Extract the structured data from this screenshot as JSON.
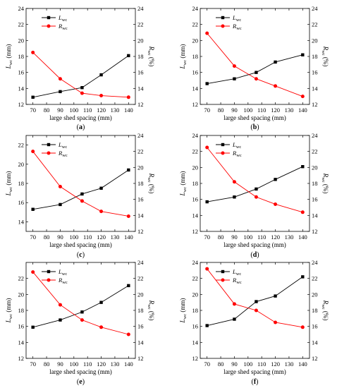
{
  "figure": {
    "panels_meta": {
      "xlabel": "large shed spacing (mm)",
      "ylabel_left": {
        "main": "L",
        "sub": "wc",
        "unit": " (mm)"
      },
      "ylabel_right": {
        "main": "R",
        "sub": "wc",
        "unit": " (%)"
      },
      "legend": [
        {
          "main": "L",
          "sub": "wc",
          "marker": "square",
          "color": "#000000"
        },
        {
          "main": "R",
          "sub": "wc",
          "marker": "circle",
          "color": "#ff0000"
        }
      ]
    }
  },
  "chart_data": [
    {
      "panel": "(a)",
      "type": "line",
      "x": [
        70,
        90,
        106,
        120,
        140
      ],
      "xlim": [
        65,
        145
      ],
      "xticks": [
        70,
        80,
        90,
        100,
        110,
        120,
        130,
        140
      ],
      "ylim_left": [
        12,
        24
      ],
      "yticks_left": [
        12,
        14,
        16,
        18,
        20,
        22,
        24
      ],
      "ylim_right": [
        12,
        24
      ],
      "yticks_right": [
        12,
        14,
        16,
        18,
        20,
        22,
        24
      ],
      "legend_position": "top-left",
      "series": [
        {
          "name": "Lwc",
          "axis": "left",
          "color": "#000000",
          "marker": "square",
          "values": [
            12.9,
            13.6,
            14.1,
            15.7,
            18.1
          ]
        },
        {
          "name": "Rwc",
          "axis": "right",
          "color": "#ff0000",
          "marker": "circle",
          "values": [
            18.5,
            15.2,
            13.4,
            13.1,
            12.9
          ]
        }
      ]
    },
    {
      "panel": "(b)",
      "type": "line",
      "x": [
        70,
        90,
        106,
        120,
        140
      ],
      "xlim": [
        65,
        145
      ],
      "xticks": [
        70,
        80,
        90,
        100,
        110,
        120,
        130,
        140
      ],
      "ylim_left": [
        12,
        24
      ],
      "yticks_left": [
        12,
        14,
        16,
        18,
        20,
        22,
        24
      ],
      "ylim_right": [
        12,
        24
      ],
      "yticks_right": [
        12,
        14,
        16,
        18,
        20,
        22,
        24
      ],
      "legend_position": "top-left",
      "series": [
        {
          "name": "Lwc",
          "axis": "left",
          "color": "#000000",
          "marker": "square",
          "values": [
            14.6,
            15.2,
            16.0,
            17.3,
            18.2
          ]
        },
        {
          "name": "Rwc",
          "axis": "right",
          "color": "#ff0000",
          "marker": "circle",
          "values": [
            20.9,
            16.8,
            15.2,
            14.3,
            13.0
          ]
        }
      ]
    },
    {
      "panel": "(c)",
      "type": "line",
      "x": [
        70,
        90,
        106,
        120,
        140
      ],
      "xlim": [
        65,
        145
      ],
      "xticks": [
        70,
        80,
        90,
        100,
        110,
        120,
        130,
        140
      ],
      "ylim_left": [
        13,
        23
      ],
      "yticks_left": [
        14,
        16,
        18,
        20,
        22
      ],
      "ylim_right": [
        12,
        24
      ],
      "yticks_right": [
        12,
        14,
        16,
        18,
        20,
        22,
        24
      ],
      "legend_position": "top-left",
      "series": [
        {
          "name": "Lwc",
          "axis": "left",
          "color": "#000000",
          "marker": "square",
          "values": [
            15.3,
            15.8,
            16.9,
            17.5,
            19.4
          ]
        },
        {
          "name": "Rwc",
          "axis": "right",
          "color": "#ff0000",
          "marker": "circle",
          "values": [
            22.0,
            17.6,
            15.8,
            14.5,
            13.9
          ]
        }
      ]
    },
    {
      "panel": "(d)",
      "type": "line",
      "x": [
        70,
        90,
        106,
        120,
        140
      ],
      "xlim": [
        65,
        145
      ],
      "xticks": [
        70,
        80,
        90,
        100,
        110,
        120,
        130,
        140
      ],
      "ylim_left": [
        12,
        24
      ],
      "yticks_left": [
        12,
        14,
        16,
        18,
        20,
        22,
        24
      ],
      "ylim_right": [
        12,
        24
      ],
      "yticks_right": [
        12,
        14,
        16,
        18,
        20,
        22,
        24
      ],
      "legend_position": "top-left",
      "series": [
        {
          "name": "Lwc",
          "axis": "left",
          "color": "#000000",
          "marker": "square",
          "values": [
            15.7,
            16.3,
            17.3,
            18.5,
            20.1
          ]
        },
        {
          "name": "Rwc",
          "axis": "right",
          "color": "#ff0000",
          "marker": "circle",
          "values": [
            22.5,
            18.2,
            16.3,
            15.4,
            14.4
          ]
        }
      ]
    },
    {
      "panel": "(e)",
      "type": "line",
      "x": [
        70,
        90,
        106,
        120,
        140
      ],
      "xlim": [
        65,
        145
      ],
      "xticks": [
        70,
        80,
        90,
        100,
        110,
        120,
        130,
        140
      ],
      "ylim_left": [
        12,
        24
      ],
      "yticks_left": [
        12,
        14,
        16,
        18,
        20,
        22
      ],
      "ylim_right": [
        12,
        24
      ],
      "yticks_right": [
        12,
        14,
        16,
        18,
        20,
        22,
        24
      ],
      "legend_position": "top-left",
      "series": [
        {
          "name": "Lwc",
          "axis": "left",
          "color": "#000000",
          "marker": "square",
          "values": [
            15.9,
            16.8,
            17.8,
            19.0,
            21.1
          ]
        },
        {
          "name": "Rwc",
          "axis": "right",
          "color": "#ff0000",
          "marker": "circle",
          "values": [
            22.8,
            18.7,
            16.8,
            15.9,
            15.0
          ]
        }
      ]
    },
    {
      "panel": "(f)",
      "type": "line",
      "x": [
        70,
        90,
        106,
        120,
        140
      ],
      "xlim": [
        65,
        145
      ],
      "xticks": [
        70,
        80,
        90,
        100,
        110,
        120,
        130,
        140
      ],
      "ylim_left": [
        12,
        24
      ],
      "yticks_left": [
        12,
        14,
        16,
        18,
        20,
        22,
        24
      ],
      "ylim_right": [
        12,
        24
      ],
      "yticks_right": [
        12,
        14,
        16,
        18,
        20,
        22,
        24
      ],
      "legend_position": "top-left",
      "series": [
        {
          "name": "Lwc",
          "axis": "left",
          "color": "#000000",
          "marker": "square",
          "values": [
            16.1,
            16.9,
            19.1,
            19.8,
            22.2
          ]
        },
        {
          "name": "Rwc",
          "axis": "right",
          "color": "#ff0000",
          "marker": "circle",
          "values": [
            23.2,
            18.8,
            18.0,
            16.5,
            15.9
          ]
        }
      ]
    }
  ]
}
